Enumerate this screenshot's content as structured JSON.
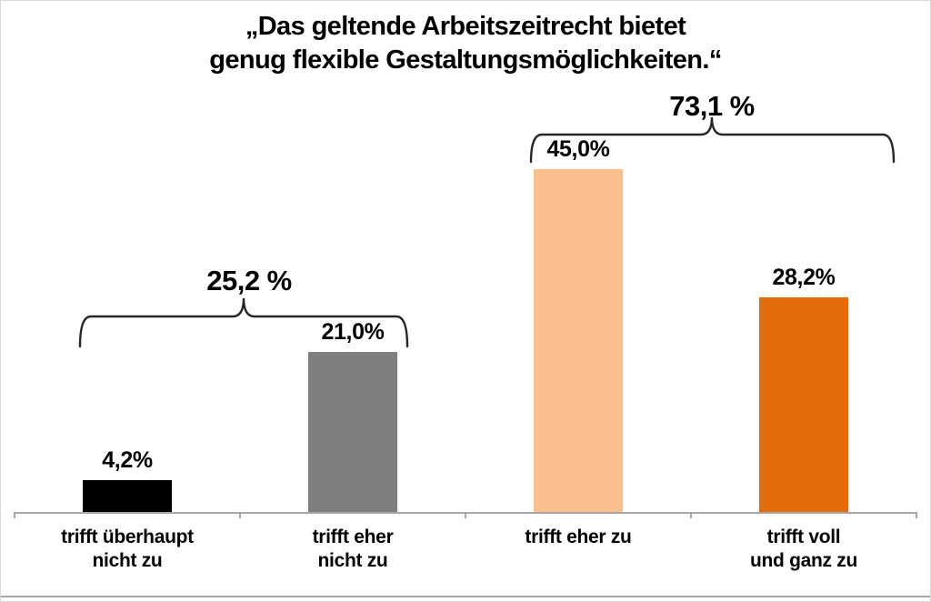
{
  "title": {
    "lines": [
      "„Das geltende Arbeitszeitrecht bietet",
      "genug flexible Gestaltungsmöglichkeiten.“"
    ]
  },
  "chart_data": {
    "type": "bar",
    "title": "„Das geltende Arbeitszeitrecht bietet genug flexible Gestaltungsmöglichkeiten.“",
    "categories": [
      "trifft überhaupt nicht zu",
      "trifft eher nicht zu",
      "trifft eher zu",
      "trifft voll und ganz zu"
    ],
    "category_lines": [
      [
        "trifft überhaupt",
        "nicht zu"
      ],
      [
        "trifft eher",
        "nicht zu"
      ],
      [
        "trifft eher zu"
      ],
      [
        "trifft voll",
        "und ganz zu"
      ]
    ],
    "values": [
      4.2,
      21.0,
      45.0,
      28.2
    ],
    "value_labels": [
      "4,2%",
      "21,0%",
      "45,0%",
      "28,2%"
    ],
    "bar_colors": [
      "#000000",
      "#7f7f7f",
      "#fabf8f",
      "#e36c09"
    ],
    "groups": [
      {
        "label": "25,2 %",
        "value": 25.2,
        "categories": [
          "trifft überhaupt nicht zu",
          "trifft eher nicht zu"
        ]
      },
      {
        "label": "73,1 %",
        "value": 73.1,
        "categories": [
          "trifft eher zu",
          "trifft voll und ganz zu"
        ]
      }
    ],
    "xlabel": "",
    "ylabel": "",
    "ylim": [
      0,
      47
    ],
    "grid": false,
    "legend": false,
    "axis_color": "#a6a6a6",
    "brace_color": "#262626",
    "text_color": "#000000"
  }
}
